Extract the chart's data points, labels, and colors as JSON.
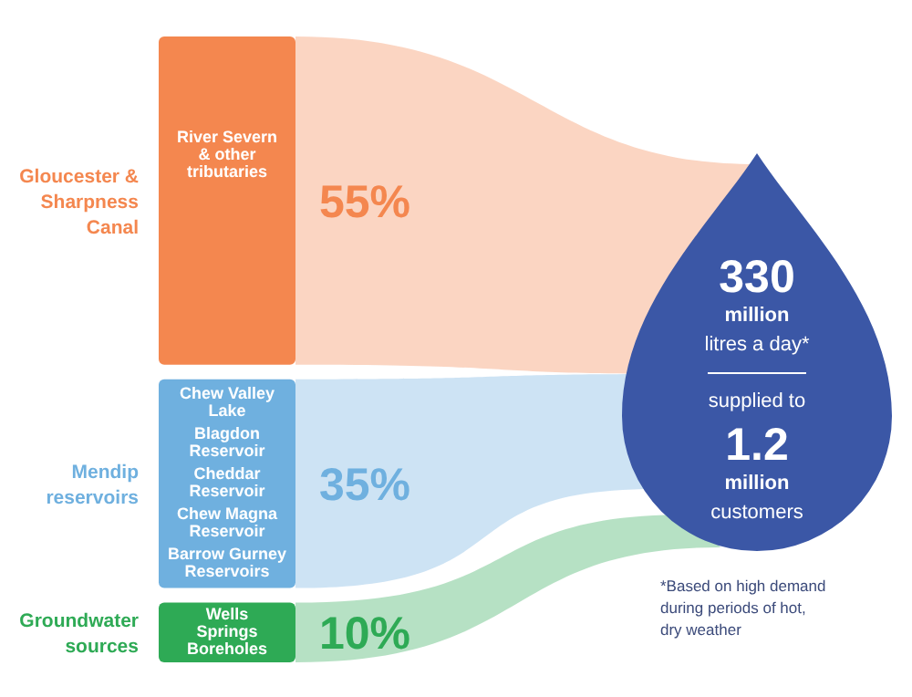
{
  "chart_data": {
    "type": "other",
    "categories": [
      "Gloucester & Sharpness Canal",
      "Mendip reservoirs",
      "Groundwater sources"
    ],
    "values": [
      55,
      35,
      10
    ],
    "value_labels": [
      "55%",
      "35%",
      "10%"
    ],
    "colors": [
      "#f4874f",
      "#6fb0df",
      "#2eaa55"
    ],
    "annotations": [
      "River Severn & other tributaries",
      "Chew Valley Lake",
      "Blagdon Reservoir",
      "Cheddar Reservoir",
      "Chew Magna Reservoir",
      "Barrow Gurney Reservoirs",
      "Wells Springs Boreholes",
      "330 million",
      "litres a day*",
      "supplied to",
      "1.2 million",
      "customers",
      "*Based on high demand during periods of hot, dry weather"
    ]
  }
}
